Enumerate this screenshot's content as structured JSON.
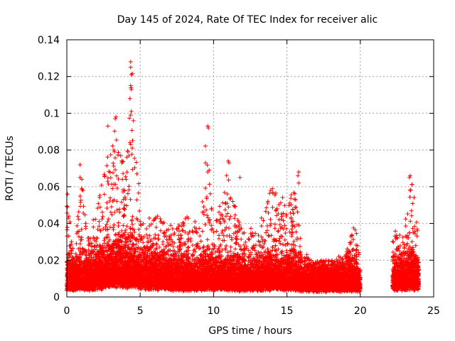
{
  "chart_data": {
    "type": "scatter",
    "title": "Day 145 of 2024, Rate Of TEC Index for receiver alic",
    "xlabel": "GPS time / hours",
    "ylabel": "ROTI / TECUs",
    "xlim": [
      0,
      25
    ],
    "ylim": [
      0,
      0.14
    ],
    "x_ticks": [
      0,
      5,
      10,
      15,
      20,
      25
    ],
    "x_tick_labels": [
      "0",
      "5",
      "10",
      "15",
      "20",
      "25"
    ],
    "y_ticks": [
      0,
      0.02,
      0.04,
      0.06,
      0.08,
      0.1,
      0.12,
      0.14
    ],
    "y_tick_labels": [
      "0",
      "0.02",
      "0.04",
      "0.06",
      "0.08",
      "0.1",
      "0.12",
      "0.14"
    ],
    "grid": true,
    "marker": "+",
    "marker_color": "#ff0000",
    "data_gaps_hours": [
      [
        20.0,
        22.2
      ]
    ],
    "envelope": {
      "x": [
        0,
        0.5,
        1,
        1.5,
        2,
        2.5,
        3,
        3.5,
        4,
        4.5,
        5,
        6,
        7,
        8,
        9,
        9.5,
        10,
        11,
        12,
        13,
        14,
        15,
        15.5,
        16,
        17,
        18,
        19,
        19.5,
        20,
        22.2,
        23,
        23.5,
        24
      ],
      "y_max": [
        0.05,
        0.03,
        0.07,
        0.035,
        0.05,
        0.065,
        0.09,
        0.098,
        0.075,
        0.128,
        0.045,
        0.045,
        0.04,
        0.045,
        0.04,
        0.093,
        0.035,
        0.073,
        0.035,
        0.04,
        0.06,
        0.055,
        0.067,
        0.025,
        0.02,
        0.02,
        0.025,
        0.04,
        0.03,
        0.035,
        0.04,
        0.066,
        0.03
      ],
      "y_median": [
        0.012,
        0.012,
        0.013,
        0.013,
        0.014,
        0.015,
        0.018,
        0.02,
        0.018,
        0.02,
        0.015,
        0.014,
        0.013,
        0.013,
        0.012,
        0.014,
        0.012,
        0.013,
        0.012,
        0.012,
        0.013,
        0.013,
        0.014,
        0.011,
        0.01,
        0.01,
        0.011,
        0.012,
        0.01,
        0.012,
        0.013,
        0.014,
        0.012
      ]
    },
    "highlighted_points": [
      {
        "x": 0.05,
        "y": 0.056
      },
      {
        "x": 0.05,
        "y": 0.049
      },
      {
        "x": 0.9,
        "y": 0.072
      },
      {
        "x": 0.9,
        "y": 0.065
      },
      {
        "x": 2.8,
        "y": 0.093
      },
      {
        "x": 3.3,
        "y": 0.097
      },
      {
        "x": 3.35,
        "y": 0.098
      },
      {
        "x": 3.2,
        "y": 0.08
      },
      {
        "x": 3.25,
        "y": 0.079
      },
      {
        "x": 3.75,
        "y": 0.073
      },
      {
        "x": 4.35,
        "y": 0.128
      },
      {
        "x": 4.35,
        "y": 0.125
      },
      {
        "x": 4.4,
        "y": 0.121
      },
      {
        "x": 4.35,
        "y": 0.115
      },
      {
        "x": 4.4,
        "y": 0.113
      },
      {
        "x": 4.3,
        "y": 0.108
      },
      {
        "x": 4.4,
        "y": 0.101
      },
      {
        "x": 4.35,
        "y": 0.099
      },
      {
        "x": 4.3,
        "y": 0.084
      },
      {
        "x": 4.35,
        "y": 0.083
      },
      {
        "x": 9.6,
        "y": 0.093
      },
      {
        "x": 9.65,
        "y": 0.092
      },
      {
        "x": 9.7,
        "y": 0.069
      },
      {
        "x": 9.6,
        "y": 0.068
      },
      {
        "x": 11.0,
        "y": 0.074
      },
      {
        "x": 11.05,
        "y": 0.073
      },
      {
        "x": 11.8,
        "y": 0.065
      },
      {
        "x": 13.9,
        "y": 0.058
      },
      {
        "x": 15.8,
        "y": 0.068
      },
      {
        "x": 15.75,
        "y": 0.066
      },
      {
        "x": 15.8,
        "y": 0.062
      },
      {
        "x": 23.4,
        "y": 0.066
      },
      {
        "x": 23.35,
        "y": 0.065
      },
      {
        "x": 23.4,
        "y": 0.058
      }
    ]
  }
}
